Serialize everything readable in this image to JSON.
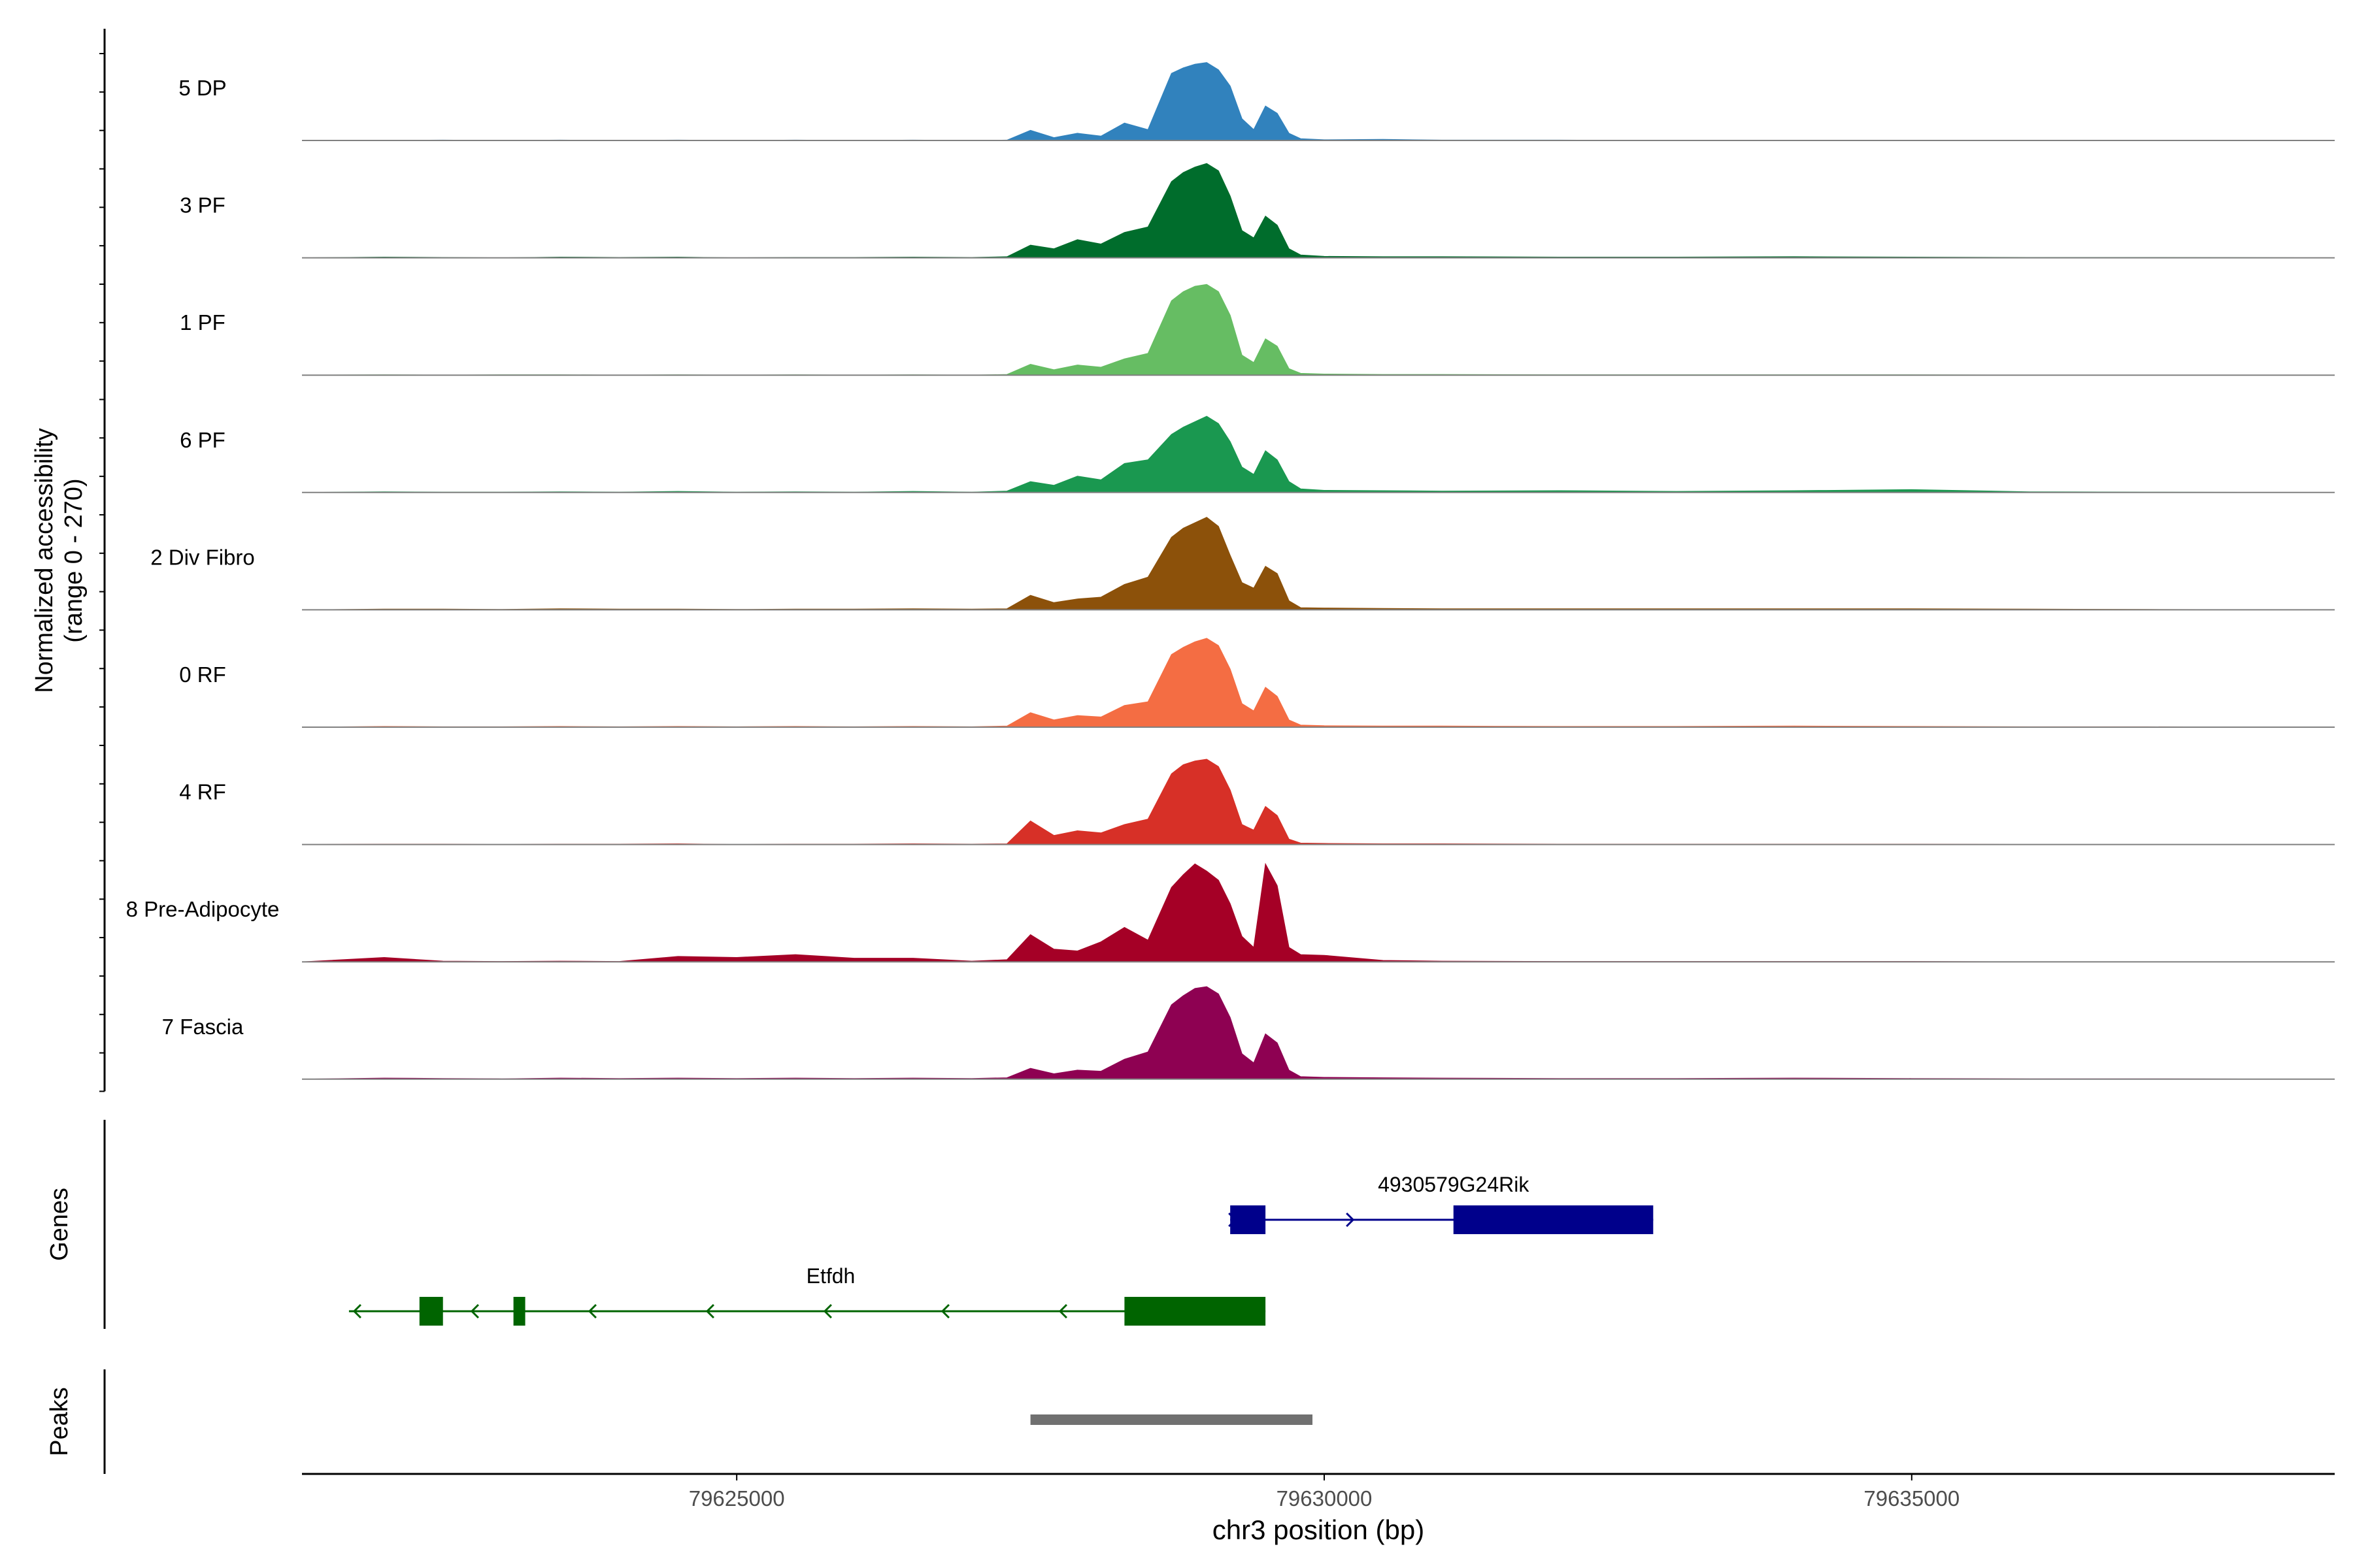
{
  "chart_data": {
    "type": "area",
    "title": "",
    "coverage": {
      "ylabel_line1": "Normalized accessibility",
      "ylabel_line2": "(range 0 - 270)",
      "ylim": [
        0,
        270
      ],
      "x_grid": [
        79621300,
        79622000,
        79622500,
        79623000,
        79623500,
        79624000,
        79624500,
        79625000,
        79625500,
        79626000,
        79626500,
        79627000,
        79627300,
        79627500,
        79627700,
        79627900,
        79628100,
        79628300,
        79628500,
        79628700,
        79628800,
        79628900,
        79629000,
        79629100,
        79629200,
        79629300,
        79629400,
        79629500,
        79629600,
        79629700,
        79629800,
        79630000,
        79630500,
        79631000,
        79632000,
        79633000,
        79634000,
        79635000,
        79636000,
        79637000,
        79638600
      ],
      "series": [
        {
          "name": "5 DP",
          "color": "#3182BD",
          "values": [
            0,
            0,
            1,
            0,
            1,
            0,
            1,
            0,
            1,
            0,
            1,
            0,
            1,
            28,
            8,
            20,
            12,
            48,
            30,
            185,
            200,
            210,
            215,
            195,
            150,
            60,
            30,
            95,
            75,
            20,
            5,
            2,
            3,
            1,
            1,
            0,
            0,
            0,
            0,
            0,
            0
          ]
        },
        {
          "name": "3 PF",
          "color": "#006D2C",
          "values": [
            0,
            2,
            1,
            0,
            2,
            1,
            2,
            0,
            1,
            1,
            2,
            1,
            3,
            35,
            25,
            50,
            38,
            70,
            85,
            210,
            235,
            250,
            260,
            240,
            170,
            75,
            55,
            115,
            90,
            25,
            8,
            4,
            3,
            3,
            2,
            2,
            3,
            2,
            1,
            1,
            0
          ]
        },
        {
          "name": "1 PF",
          "color": "#66BD63",
          "values": [
            0,
            1,
            0,
            1,
            1,
            0,
            1,
            0,
            1,
            0,
            1,
            0,
            2,
            30,
            15,
            28,
            22,
            45,
            60,
            205,
            230,
            245,
            250,
            230,
            165,
            55,
            35,
            100,
            80,
            18,
            5,
            3,
            2,
            2,
            1,
            1,
            1,
            1,
            0,
            0,
            0
          ]
        },
        {
          "name": "6 PF",
          "color": "#1A9850",
          "values": [
            0,
            2,
            1,
            1,
            2,
            1,
            3,
            1,
            2,
            1,
            3,
            1,
            4,
            30,
            20,
            45,
            35,
            80,
            90,
            160,
            180,
            195,
            210,
            190,
            140,
            70,
            50,
            115,
            90,
            30,
            10,
            6,
            5,
            4,
            5,
            3,
            5,
            8,
            2,
            1,
            0
          ]
        },
        {
          "name": "2 Div Fibro",
          "color": "#8C510A",
          "values": [
            0,
            2,
            2,
            1,
            3,
            2,
            2,
            1,
            2,
            2,
            3,
            2,
            3,
            40,
            20,
            30,
            35,
            70,
            90,
            200,
            225,
            240,
            255,
            230,
            150,
            75,
            60,
            120,
            100,
            25,
            6,
            5,
            4,
            3,
            3,
            3,
            3,
            3,
            2,
            1,
            0
          ]
        },
        {
          "name": "0 RF",
          "color": "#F46D43",
          "values": [
            0,
            2,
            1,
            1,
            2,
            1,
            2,
            1,
            2,
            1,
            2,
            1,
            3,
            40,
            20,
            32,
            28,
            60,
            70,
            200,
            220,
            235,
            245,
            225,
            160,
            65,
            45,
            110,
            85,
            20,
            6,
            4,
            3,
            3,
            2,
            2,
            3,
            2,
            1,
            1,
            0
          ]
        },
        {
          "name": "4 RF",
          "color": "#D73027",
          "values": [
            0,
            1,
            1,
            0,
            1,
            1,
            2,
            0,
            1,
            1,
            2,
            1,
            2,
            65,
            25,
            38,
            32,
            55,
            70,
            195,
            220,
            230,
            235,
            215,
            150,
            55,
            40,
            105,
            80,
            15,
            4,
            3,
            2,
            2,
            1,
            1,
            1,
            1,
            0,
            0,
            0
          ]
        },
        {
          "name": "8 Pre-Adipocyte",
          "color": "#A50026",
          "values": [
            0,
            12,
            2,
            1,
            2,
            1,
            15,
            12,
            20,
            10,
            10,
            2,
            6,
            75,
            35,
            30,
            55,
            95,
            60,
            205,
            240,
            270,
            250,
            225,
            160,
            70,
            40,
            270,
            210,
            40,
            20,
            18,
            4,
            2,
            1,
            1,
            1,
            1,
            0,
            0,
            0
          ]
        },
        {
          "name": "7 Fascia",
          "color": "#8E0152",
          "values": [
            0,
            3,
            2,
            1,
            3,
            2,
            3,
            2,
            3,
            2,
            3,
            2,
            4,
            30,
            15,
            25,
            22,
            55,
            75,
            205,
            230,
            250,
            255,
            235,
            170,
            70,
            45,
            125,
            100,
            25,
            7,
            5,
            4,
            3,
            2,
            2,
            3,
            2,
            1,
            1,
            0
          ]
        }
      ]
    },
    "genes_panel": {
      "label": "Genes",
      "genes": [
        {
          "name": "4930579G24Rik",
          "strand": "+",
          "start": 79629200,
          "end": 79632800,
          "exons": [
            [
              79629200,
              79629500
            ],
            [
              79631100,
              79632800
            ]
          ],
          "color": "#00008B"
        },
        {
          "name": "Etfdh",
          "strand": "-",
          "start": 79621700,
          "end": 79629500,
          "exons": [
            [
              79622300,
              79622500
            ],
            [
              79623100,
              79623200
            ],
            [
              79628300,
              79629500
            ]
          ],
          "color": "#006400"
        }
      ]
    },
    "peaks_panel": {
      "label": "Peaks",
      "peaks": [
        {
          "start": 79627500,
          "end": 79629900,
          "color": "#707070"
        }
      ]
    },
    "xaxis": {
      "label": "chr3 position (bp)",
      "xlim": [
        79621300,
        79638600
      ],
      "ticks": [
        79625000,
        79630000,
        79635000
      ],
      "tick_labels": [
        "79625000",
        "79630000",
        "79635000"
      ]
    }
  }
}
